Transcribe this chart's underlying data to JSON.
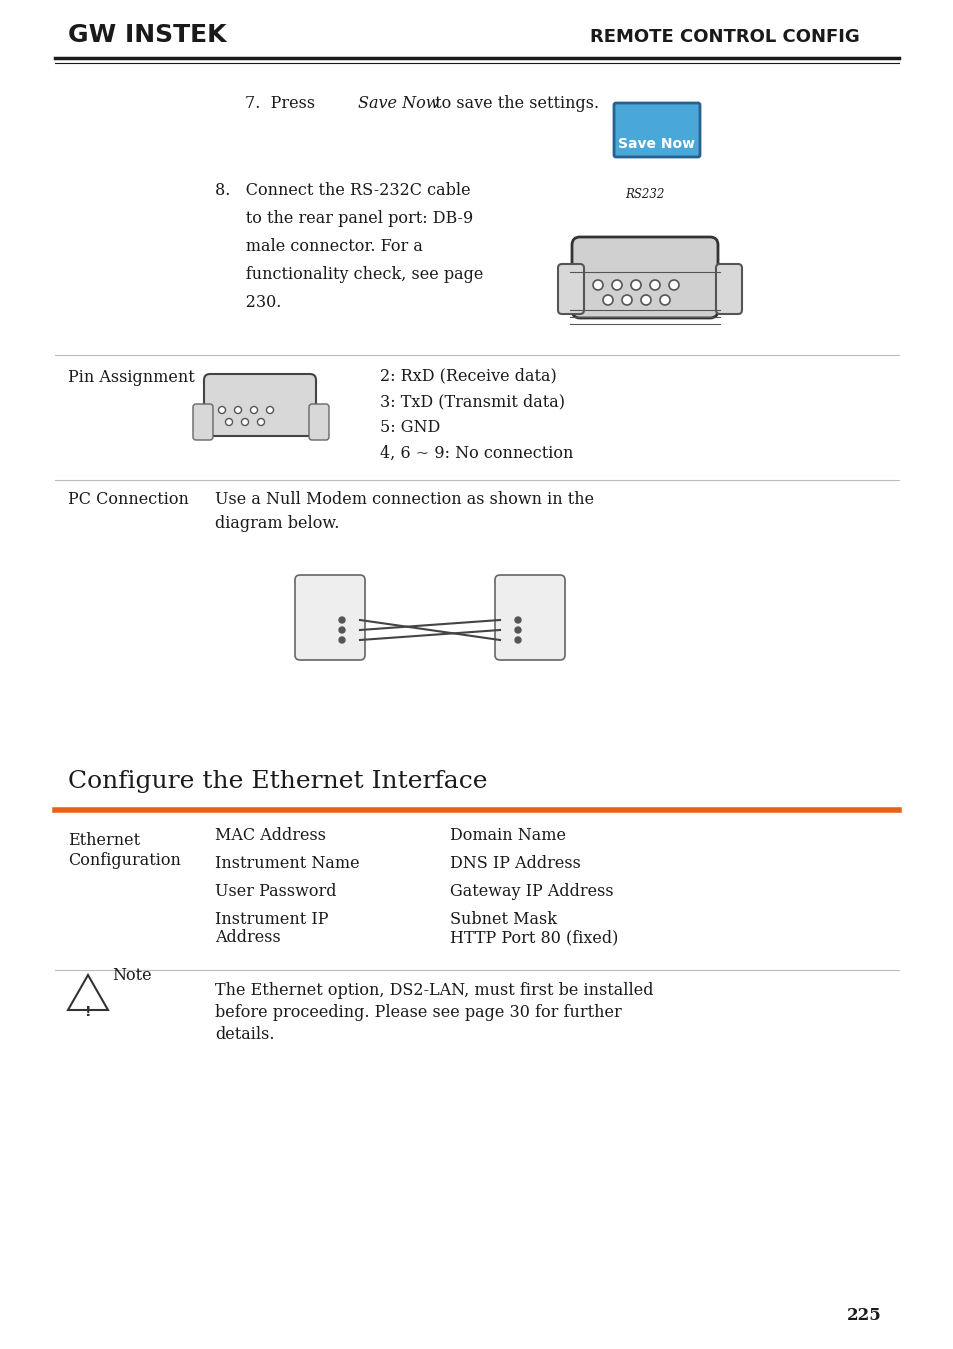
{
  "page_bg": "#ffffff",
  "header_logo_text": "GW INSTEK",
  "header_right_text": "REMOTE CONTROL CONFIG",
  "header_line_color": "#1a1a1a",
  "orange_line_color": "#e8611a",
  "step7_text": "7. Press ",
  "step7_italic": "Save Now",
  "step7_rest": " to save the settings.",
  "save_now_btn_color": "#4aa8d8",
  "save_now_btn_border": "#2a6090",
  "save_now_btn_text": "Save Now",
  "step8_text": "8. Connect the RS-232C cable\n   to the rear panel port: DB-9\n   male connector. For a\n   functionality check, see page\n   230.",
  "rs232_label": "RS232",
  "pin_label": "Pin Assignment",
  "pin_items": [
    "2: RxD (Receive data)",
    "3: TxD (Transmit data)",
    "5: GND",
    "4, 6 ~ 9: No connection"
  ],
  "pc_label": "PC Connection",
  "pc_text": "Use a Null Modem connection as shown in the\ndiagram below.",
  "section_title": "Configure the Ethernet Interface",
  "eth_label": "Ethernet\nConfiguration",
  "eth_col1": [
    "MAC Address",
    "Instrument Name",
    "User Password",
    "Instrument IP\nAddress"
  ],
  "eth_col2": [
    "Domain Name",
    "DNS IP Address",
    "Gateway IP Address",
    "Subnet Mask",
    "HTTP Port 80 (fixed)"
  ],
  "note_text": "The Ethernet option, DS2-LAN, must first be installed\nbefore proceeding. Please see page 30 for further\ndetails.",
  "page_number": "225",
  "font_color": "#1a1a1a",
  "section_line_color": "#cccccc"
}
